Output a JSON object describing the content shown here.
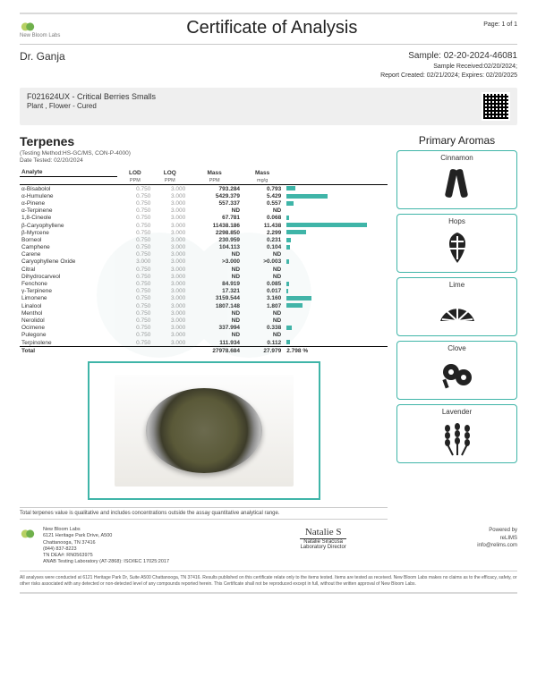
{
  "brand": {
    "name": "New Bloom Labs"
  },
  "header": {
    "title": "Certificate of Analysis",
    "page": "Page: 1 of 1"
  },
  "client": {
    "name": "Dr. Ganja"
  },
  "sample": {
    "id": "Sample: 02-20-2024-46081",
    "received": "Sample Received:02/20/2024;",
    "report": "Report Created: 02/21/2024; Expires: 02/20/2025"
  },
  "product": {
    "code_name": "F021624UX - Critical Berries Smalls",
    "matrix": "Plant , Flower - Cured"
  },
  "terpenes": {
    "title": "Terpenes",
    "method": "(Testing Method:HS-GC/MS, CON-P-4000)",
    "date": "Date Tested: 02/20/2024",
    "headers": {
      "analyte": "Analyte",
      "lod": "LOD",
      "loq": "LOQ",
      "mass_ppm": "Mass",
      "mass_mgg": "Mass"
    },
    "units": {
      "lod_u": "PPM",
      "loq_u": "PPM",
      "mass_ppm_u": "PPM",
      "mass_mgg_u": "mg/g"
    },
    "rows": [
      {
        "name": "α-Bisabolol",
        "lod": "0.750",
        "loq": "3.000",
        "ppm": "793.284",
        "mgg": "0.793",
        "bar": 10
      },
      {
        "name": "α-Humulene",
        "lod": "0.750",
        "loq": "3.000",
        "ppm": "5429.379",
        "mgg": "5.429",
        "bar": 46
      },
      {
        "name": "α-Pinene",
        "lod": "0.750",
        "loq": "3.000",
        "ppm": "557.337",
        "mgg": "0.557",
        "bar": 8
      },
      {
        "name": "α-Terpinene",
        "lod": "0.750",
        "loq": "3.000",
        "ppm": "ND",
        "mgg": "ND",
        "bar": 0
      },
      {
        "name": "1,8-Cineole",
        "lod": "0.750",
        "loq": "3.000",
        "ppm": "67.781",
        "mgg": "0.068",
        "bar": 3
      },
      {
        "name": "β-Caryophyllene",
        "lod": "0.750",
        "loq": "3.000",
        "ppm": "11438.186",
        "mgg": "11.438",
        "bar": 90
      },
      {
        "name": "β-Myrcene",
        "lod": "0.750",
        "loq": "3.000",
        "ppm": "2298.850",
        "mgg": "2.299",
        "bar": 22
      },
      {
        "name": "Borneol",
        "lod": "0.750",
        "loq": "3.000",
        "ppm": "230.959",
        "mgg": "0.231",
        "bar": 5
      },
      {
        "name": "Camphene",
        "lod": "0.750",
        "loq": "3.000",
        "ppm": "104.113",
        "mgg": "0.104",
        "bar": 4
      },
      {
        "name": "Carene",
        "lod": "0.750",
        "loq": "3.000",
        "ppm": "ND",
        "mgg": "ND",
        "bar": 0
      },
      {
        "name": "Caryophyllene Oxide",
        "lod": "3.000",
        "loq": "3.000",
        "ppm": ">3.000",
        "mgg": ">0.003",
        "bar": 3
      },
      {
        "name": "Citral",
        "lod": "0.750",
        "loq": "3.000",
        "ppm": "ND",
        "mgg": "ND",
        "bar": 0
      },
      {
        "name": "Dihydrocarveol",
        "lod": "0.750",
        "loq": "3.000",
        "ppm": "ND",
        "mgg": "ND",
        "bar": 0
      },
      {
        "name": "Fenchone",
        "lod": "0.750",
        "loq": "3.000",
        "ppm": "84.919",
        "mgg": "0.085",
        "bar": 3
      },
      {
        "name": "γ-Terpinene",
        "lod": "0.750",
        "loq": "3.000",
        "ppm": "17.321",
        "mgg": "0.017",
        "bar": 2
      },
      {
        "name": "Limonene",
        "lod": "0.750",
        "loq": "3.000",
        "ppm": "3159.544",
        "mgg": "3.160",
        "bar": 28
      },
      {
        "name": "Linalool",
        "lod": "0.750",
        "loq": "3.000",
        "ppm": "1807.148",
        "mgg": "1.807",
        "bar": 18
      },
      {
        "name": "Menthol",
        "lod": "0.750",
        "loq": "3.000",
        "ppm": "ND",
        "mgg": "ND",
        "bar": 0
      },
      {
        "name": "Nerolidol",
        "lod": "0.750",
        "loq": "3.000",
        "ppm": "ND",
        "mgg": "ND",
        "bar": 0
      },
      {
        "name": "Ocimene",
        "lod": "0.750",
        "loq": "3.000",
        "ppm": "337.994",
        "mgg": "0.338",
        "bar": 6
      },
      {
        "name": "Pulegone",
        "lod": "0.750",
        "loq": "3.000",
        "ppm": "ND",
        "mgg": "ND",
        "bar": 0
      },
      {
        "name": "Terpinolene",
        "lod": "0.750",
        "loq": "3.000",
        "ppm": "111.934",
        "mgg": "0.112",
        "bar": 4
      }
    ],
    "total": {
      "name": "Total",
      "ppm": "27978.684",
      "mgg": "27.979",
      "pct": "2.798 %"
    },
    "bar_color": "#3fb5a8",
    "photo_note": "Total terpenes value is qualitative and includes concentrations outside the assay quantitative analytical range."
  },
  "aromas": {
    "title": "Primary Aromas",
    "items": [
      "Cinnamon",
      "Hops",
      "Lime",
      "Clove",
      "Lavender"
    ]
  },
  "footer": {
    "addr_lines": [
      "New Bloom Labs",
      "6121 Heritage Park Drive, A500",
      "Chattanooga, TN 37416",
      "(844) 837-8223",
      "TN DEA#: RN0563975",
      "ANAB Testing Laboratory (AT-2868): ISO/IEC 17025:2017"
    ],
    "signer_name": "Natalie Siracusa",
    "signer_title": "Laboratory Director",
    "powered_by": "Powered by",
    "relims": "reLIMS",
    "email": "info@relims.com"
  },
  "disclaimer": "All analyses were conducted at 6121 Heritage Park Dr, Suite A500 Chattanooga, TN 37416. Results published on this certificate relate only to the items tested. Items are tested as received. New Bloom Labs makes no claims as to the efficacy, safety, or other risks associated with any detected or non-detected level of any compounds reported herein. This Certificate shall not be reproduced except in full, without the written approval of New Bloom Labs."
}
